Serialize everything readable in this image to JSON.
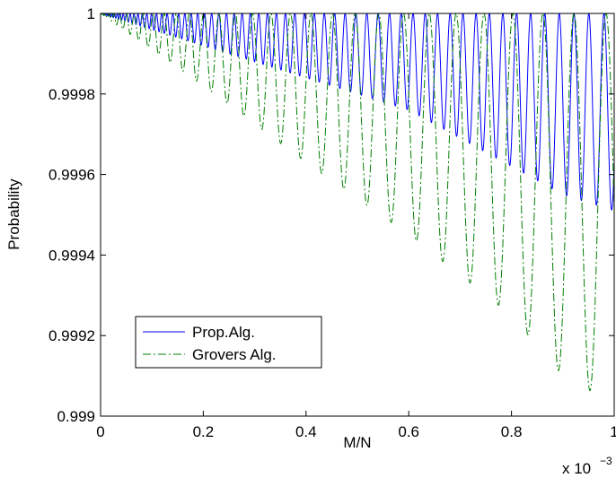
{
  "chart_data": {
    "type": "line",
    "xlabel": "M/N",
    "ylabel": "Probability",
    "x_exponent_base": "x 10",
    "x_exponent_power": "−3",
    "xlim": [
      0,
      1
    ],
    "ylim": [
      0.999,
      1
    ],
    "x_ticks": [
      0,
      0.2,
      0.4,
      0.6,
      0.8,
      1
    ],
    "x_tick_labels": [
      "0",
      "0.2",
      "0.4",
      "0.6",
      "0.8",
      "1"
    ],
    "y_ticks": [
      0.999,
      0.9992,
      0.9994,
      0.9996,
      0.9998,
      1
    ],
    "y_tick_labels": [
      "0.999",
      "0.9992",
      "0.9994",
      "0.9996",
      "0.9998",
      "1"
    ],
    "grid": false,
    "legend_position": "lower-left",
    "series": [
      {
        "name": "Prop.Alg.",
        "color": "#0000ff",
        "style": "solid",
        "period_constant": 0.015,
        "envelope_min": [
          [
            0,
            1.0
          ],
          [
            0.2,
            0.99992
          ],
          [
            0.4,
            0.99984
          ],
          [
            0.6,
            0.99976
          ],
          [
            0.8,
            0.99962
          ],
          [
            0.9,
            0.99955
          ],
          [
            1.0,
            0.99951
          ]
        ]
      },
      {
        "name": "Grovers Alg.",
        "color": "#007f00",
        "style": "dashdot",
        "period_constant": 0.032,
        "envelope_min": [
          [
            0,
            1.0
          ],
          [
            0.2,
            0.99982
          ],
          [
            0.4,
            0.99963
          ],
          [
            0.6,
            0.99945
          ],
          [
            0.8,
            0.99925
          ],
          [
            0.9,
            0.9991
          ],
          [
            1.0,
            0.99903
          ]
        ]
      }
    ]
  }
}
